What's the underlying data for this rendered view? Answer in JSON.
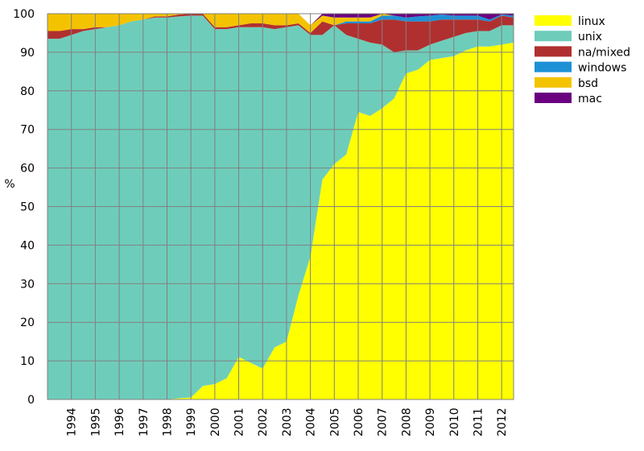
{
  "chart_data": {
    "type": "area",
    "stacked": true,
    "normalized_percent": true,
    "ylabel": "%",
    "xlabel": "",
    "title": "",
    "ylim": [
      0,
      100
    ],
    "xlim": [
      1993.0,
      2012.5
    ],
    "y_ticks": [
      0,
      10,
      20,
      30,
      40,
      50,
      60,
      70,
      80,
      90,
      100
    ],
    "x_ticks": [
      1994,
      1995,
      1996,
      1997,
      1998,
      1999,
      2000,
      2001,
      2002,
      2003,
      2004,
      2005,
      2006,
      2007,
      2008,
      2009,
      2010,
      2011,
      2012
    ],
    "grid": true,
    "legend_position": "top-right",
    "x": [
      1993.0,
      1993.5,
      1994.0,
      1994.5,
      1995.0,
      1995.5,
      1996.0,
      1996.5,
      1997.0,
      1997.5,
      1998.0,
      1998.5,
      1999.0,
      1999.5,
      2000.0,
      2000.5,
      2001.0,
      2001.5,
      2002.0,
      2002.5,
      2003.0,
      2003.5,
      2004.0,
      2004.5,
      2005.0,
      2005.5,
      2006.0,
      2006.5,
      2007.0,
      2007.5,
      2008.0,
      2008.5,
      2009.0,
      2009.5,
      2010.0,
      2010.5,
      2011.0,
      2011.5,
      2012.0,
      2012.5
    ],
    "series": [
      {
        "name": "linux",
        "color": "#ffff00",
        "values": [
          0,
          0,
          0,
          0,
          0,
          0,
          0,
          0,
          0,
          0,
          0,
          0.3,
          0.5,
          3.5,
          4,
          5.5,
          11,
          9.5,
          8,
          13.5,
          15,
          27,
          37,
          57,
          61,
          63.5,
          74.5,
          73.5,
          75.5,
          78,
          84.5,
          85.5,
          88,
          88.5,
          89,
          90.5,
          91.5,
          91.5,
          92,
          92.5
        ]
      },
      {
        "name": "unix",
        "color": "#6ecdba",
        "values": [
          93.5,
          93.5,
          94.5,
          95.5,
          96,
          96.5,
          97,
          98,
          98.5,
          99,
          99,
          99,
          99,
          96,
          92,
          90.5,
          85.5,
          87,
          88.5,
          82.5,
          81.5,
          70,
          57.5,
          37.5,
          36,
          31,
          19,
          19,
          16.5,
          12,
          6,
          5,
          4,
          4.5,
          5,
          4.5,
          4,
          4,
          5,
          4.5
        ]
      },
      {
        "name": "na/mixed",
        "color": "#b03030",
        "values": [
          2,
          2,
          1.5,
          0.5,
          0.5,
          0,
          0,
          0,
          0,
          0.3,
          0.3,
          0.5,
          0.5,
          0.5,
          0.5,
          0.5,
          0.5,
          1,
          1,
          1,
          0.5,
          0.5,
          0.5,
          3.5,
          0,
          3,
          4,
          5,
          6.5,
          8.5,
          7.5,
          7.5,
          6,
          5.5,
          4.5,
          3.5,
          3,
          2.5,
          2.5,
          2
        ]
      },
      {
        "name": "windows",
        "color": "#1e90d6",
        "values": [
          0,
          0,
          0,
          0,
          0,
          0,
          0,
          0,
          0,
          0,
          0,
          0,
          0,
          0,
          0,
          0,
          0,
          0,
          0,
          0,
          0,
          0,
          0,
          0,
          0,
          0.5,
          0.5,
          0.5,
          1,
          1,
          1,
          1.3,
          1.5,
          1.3,
          1,
          1,
          1,
          0.5,
          0.3,
          0.5
        ]
      },
      {
        "name": "bsd",
        "color": "#f4c300",
        "values": [
          4.5,
          4.5,
          4,
          4,
          3.5,
          3.5,
          3,
          2,
          1.5,
          0.7,
          0.7,
          0.2,
          0,
          0,
          3.5,
          3.5,
          3,
          2.5,
          2.5,
          3,
          3,
          2.5,
          2,
          1.5,
          2,
          1,
          1,
          1,
          0.5,
          0,
          0,
          0,
          0,
          0,
          0,
          0,
          0,
          0,
          0,
          0
        ]
      },
      {
        "name": "mac",
        "color": "#6a0080",
        "values": [
          0,
          0,
          0,
          0,
          0,
          0,
          0,
          0,
          0,
          0,
          0,
          0,
          0,
          0,
          0,
          0,
          0,
          0,
          0,
          0,
          0,
          0,
          0,
          0.5,
          1,
          1,
          1,
          1,
          0,
          0.5,
          1,
          0.7,
          0.5,
          0.2,
          0.5,
          0.5,
          0.5,
          1.5,
          0.2,
          0.5
        ]
      }
    ]
  }
}
